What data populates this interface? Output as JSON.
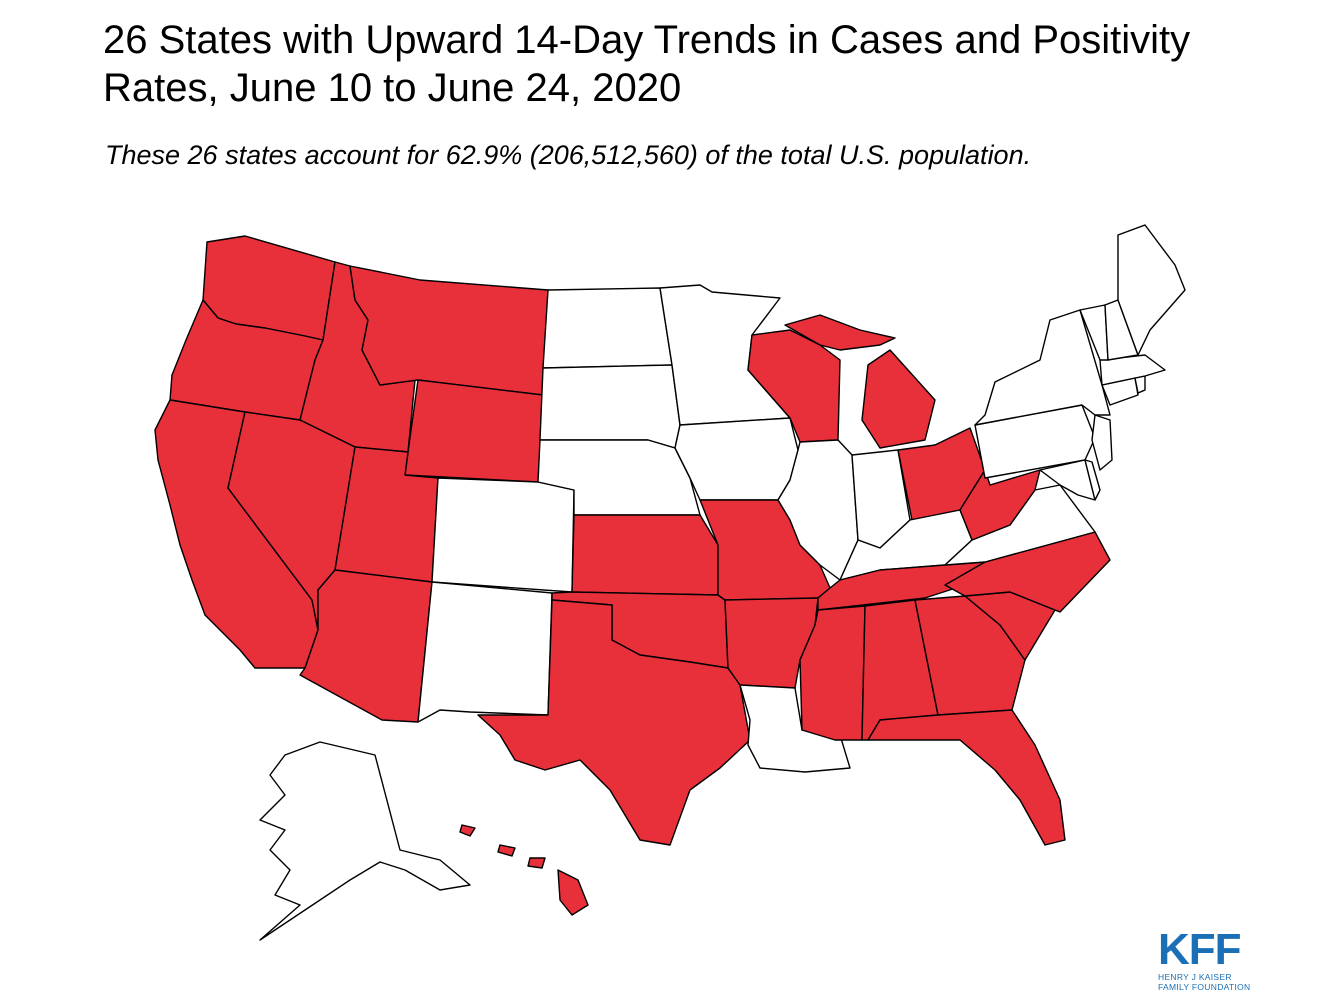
{
  "header": {
    "title": "26 States with Upward 14-Day Trends in Cases and Positivity Rates, June 10 to June 24, 2020",
    "subtitle": "These 26 states account for 62.9% (206,512,560) of the total U.S. population."
  },
  "legend_colors": {
    "upward_trend": "#e8303a",
    "other": "#ffffff",
    "border": "#000000"
  },
  "states_upward": [
    "WA",
    "OR",
    "CA",
    "ID",
    "NV",
    "MT",
    "WY",
    "UT",
    "AZ",
    "KS",
    "OK",
    "TX",
    "MO",
    "AR",
    "WI",
    "MI",
    "OH",
    "WV",
    "TN",
    "MS",
    "AL",
    "GA",
    "SC",
    "NC",
    "FL",
    "HI"
  ],
  "states_other": [
    "AK",
    "CO",
    "NM",
    "ND",
    "SD",
    "NE",
    "MN",
    "IA",
    "IL",
    "IN",
    "KY",
    "LA",
    "VA",
    "PA",
    "NY",
    "VT",
    "NH",
    "ME",
    "MA",
    "CT",
    "RI",
    "NJ",
    "DE",
    "MD"
  ],
  "logo": {
    "mark": "KFF",
    "line1": "HENRY J KAISER",
    "line2": "FAMILY FOUNDATION"
  }
}
